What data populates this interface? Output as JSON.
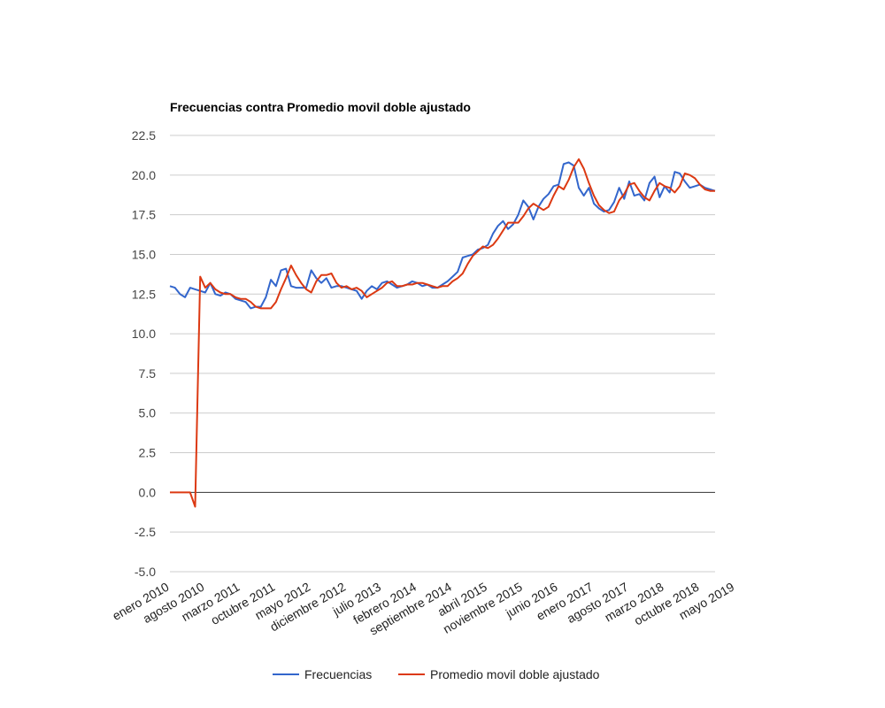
{
  "chart_data": {
    "type": "line",
    "title": "Frecuencias contra Promedio movil doble ajustado",
    "xlabel": "",
    "ylabel": "",
    "ylim": [
      -5.0,
      22.5
    ],
    "yticks": [
      "-5.0",
      "-2.5",
      "0.0",
      "2.5",
      "5.0",
      "7.5",
      "10.0",
      "12.5",
      "15.0",
      "17.5",
      "20.0",
      "22.5"
    ],
    "x_tick_labels": [
      "enero 2010",
      "agosto 2010",
      "marzo 2011",
      "octubre 2011",
      "mayo 2012",
      "diciembre 2012",
      "julio 2013",
      "febrero 2014",
      "septiembre 2014",
      "abril 2015",
      "noviembre 2015",
      "junio 2016",
      "enero 2017",
      "agosto 2017",
      "marzo 2018",
      "octubre 2018",
      "mayo 2019"
    ],
    "x_start": "2010-01",
    "grid": true,
    "legend_position": "bottom",
    "series": [
      {
        "name": "Frecuencias",
        "color": "#3366cc",
        "values": [
          13.0,
          12.9,
          12.5,
          12.3,
          12.9,
          12.8,
          12.7,
          12.6,
          13.2,
          12.5,
          12.4,
          12.6,
          12.5,
          12.2,
          12.1,
          12.0,
          11.6,
          11.7,
          11.7,
          12.3,
          13.4,
          13.0,
          14.0,
          14.1,
          13.0,
          12.9,
          12.9,
          12.9,
          14.0,
          13.5,
          13.2,
          13.5,
          12.9,
          13.0,
          13.0,
          12.9,
          12.8,
          12.7,
          12.2,
          12.7,
          13.0,
          12.8,
          13.2,
          13.3,
          13.1,
          12.9,
          13.0,
          13.1,
          13.3,
          13.2,
          13.0,
          13.1,
          12.9,
          12.9,
          13.1,
          13.3,
          13.6,
          13.9,
          14.8,
          14.9,
          15.0,
          15.3,
          15.4,
          15.6,
          16.3,
          16.8,
          17.1,
          16.6,
          16.9,
          17.5,
          18.4,
          18.0,
          17.2,
          18.0,
          18.5,
          18.8,
          19.3,
          19.4,
          20.7,
          20.8,
          20.6,
          19.2,
          18.7,
          19.2,
          18.2,
          17.9,
          17.7,
          17.8,
          18.3,
          19.2,
          18.5,
          19.6,
          18.7,
          18.8,
          18.4,
          19.5,
          19.9,
          18.6,
          19.3,
          18.9,
          20.2,
          20.1,
          19.6,
          19.2,
          19.3,
          19.4,
          19.2,
          19.1,
          19.0
        ]
      },
      {
        "name": "Promedio movil doble ajustado",
        "color": "#dc3912",
        "values": [
          0.0,
          0.0,
          0.0,
          0.0,
          0.0,
          -0.9,
          13.6,
          12.9,
          13.2,
          12.8,
          12.6,
          12.5,
          12.5,
          12.3,
          12.2,
          12.2,
          12.0,
          11.7,
          11.6,
          11.6,
          11.6,
          12.0,
          12.8,
          13.5,
          14.3,
          13.7,
          13.2,
          12.8,
          12.6,
          13.3,
          13.7,
          13.7,
          13.8,
          13.2,
          12.9,
          13.0,
          12.8,
          12.9,
          12.7,
          12.3,
          12.5,
          12.7,
          12.9,
          13.2,
          13.3,
          13.0,
          13.0,
          13.1,
          13.1,
          13.2,
          13.2,
          13.1,
          13.0,
          12.9,
          13.0,
          13.0,
          13.3,
          13.5,
          13.8,
          14.4,
          14.9,
          15.2,
          15.5,
          15.4,
          15.6,
          16.0,
          16.5,
          17.0,
          17.0,
          17.0,
          17.4,
          17.9,
          18.2,
          18.0,
          17.8,
          18.0,
          18.7,
          19.3,
          19.1,
          19.7,
          20.5,
          21.0,
          20.4,
          19.5,
          18.7,
          18.1,
          17.8,
          17.6,
          17.7,
          18.4,
          18.8,
          19.4,
          19.5,
          19.0,
          18.6,
          18.4,
          19.0,
          19.5,
          19.3,
          19.2,
          18.9,
          19.3,
          20.1,
          20.0,
          19.8,
          19.4,
          19.1,
          19.0,
          19.0
        ]
      }
    ]
  }
}
